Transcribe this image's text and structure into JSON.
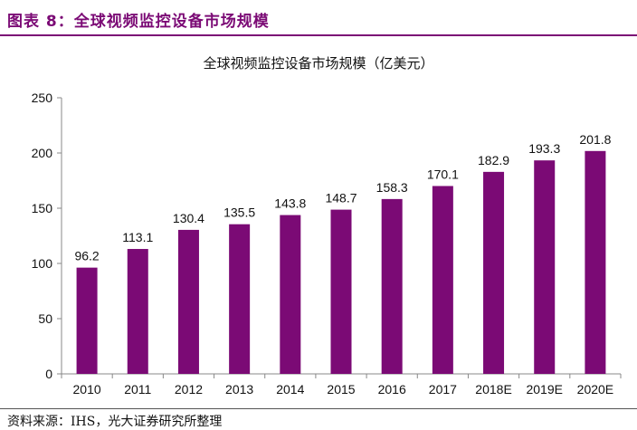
{
  "header": {
    "figure_title": "图表 8：全球视频监控设备市场规模"
  },
  "footer": {
    "source": "资料来源：IHS，光大证券研究所整理"
  },
  "chart_data": {
    "type": "bar",
    "title": "全球视频监控设备市场规模（亿美元）",
    "categories": [
      "2010",
      "2011",
      "2012",
      "2013",
      "2014",
      "2015",
      "2016",
      "2017",
      "2018E",
      "2019E",
      "2020E"
    ],
    "values": [
      96.2,
      113.1,
      130.4,
      135.5,
      143.8,
      148.7,
      158.3,
      170.1,
      182.9,
      193.3,
      201.8
    ],
    "value_labels": [
      "96.2",
      "113.1",
      "130.4",
      "135.5",
      "143.8",
      "148.7",
      "158.3",
      "170.1",
      "182.9",
      "193.3",
      "201.8"
    ],
    "ylim": [
      0,
      250
    ],
    "yticks": [
      "0",
      "50",
      "100",
      "150",
      "200",
      "250"
    ],
    "bar_color": "#7b0a75",
    "grid": false,
    "legend": "none"
  }
}
